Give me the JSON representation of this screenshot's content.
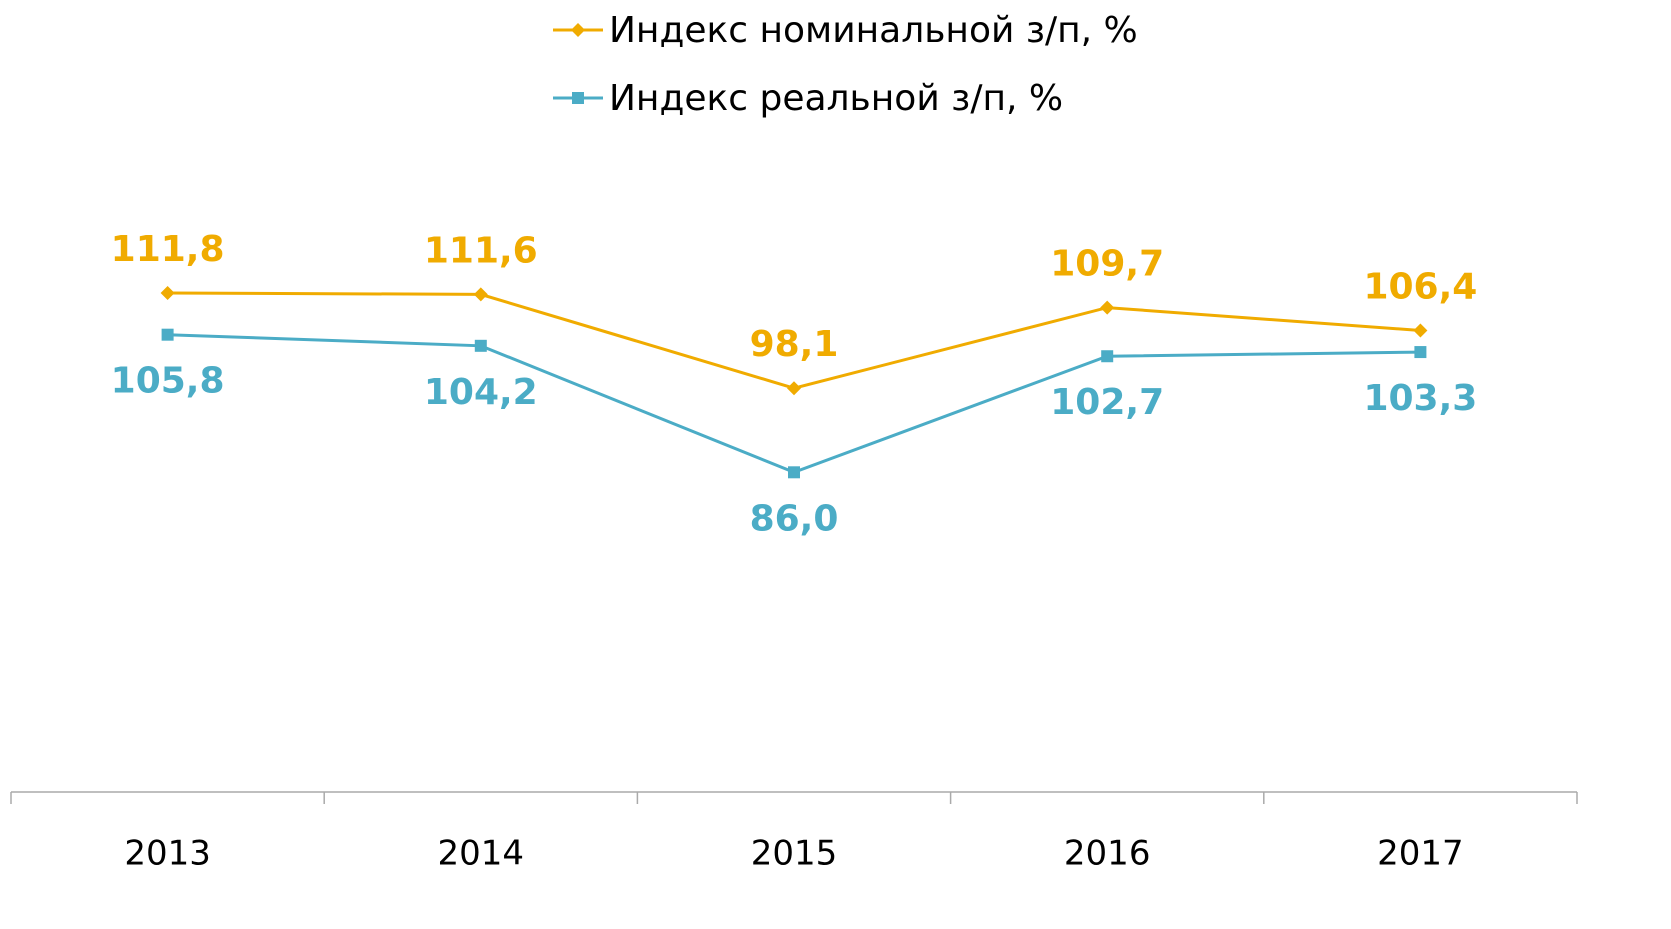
{
  "chart_data": {
    "type": "line",
    "categories": [
      "2013",
      "2014",
      "2015",
      "2016",
      "2017"
    ],
    "series": [
      {
        "name": "Индекс номинальной з/п, %",
        "color": "#f0ab00",
        "marker": "diamond",
        "values": [
          111.8,
          111.6,
          98.1,
          109.7,
          106.4
        ],
        "value_labels": [
          "111,8",
          "111,6",
          "98,1",
          "109,7",
          "106,4"
        ]
      },
      {
        "name": "Индекс реальной з/п, %",
        "color": "#4bacc6",
        "marker": "square",
        "values": [
          105.8,
          104.2,
          86.0,
          102.7,
          103.3
        ],
        "value_labels": [
          "105,8",
          "104,2",
          "86,0",
          "102,7",
          "103,3"
        ]
      }
    ],
    "ylim": [
      40,
      120
    ],
    "legend": "top"
  }
}
